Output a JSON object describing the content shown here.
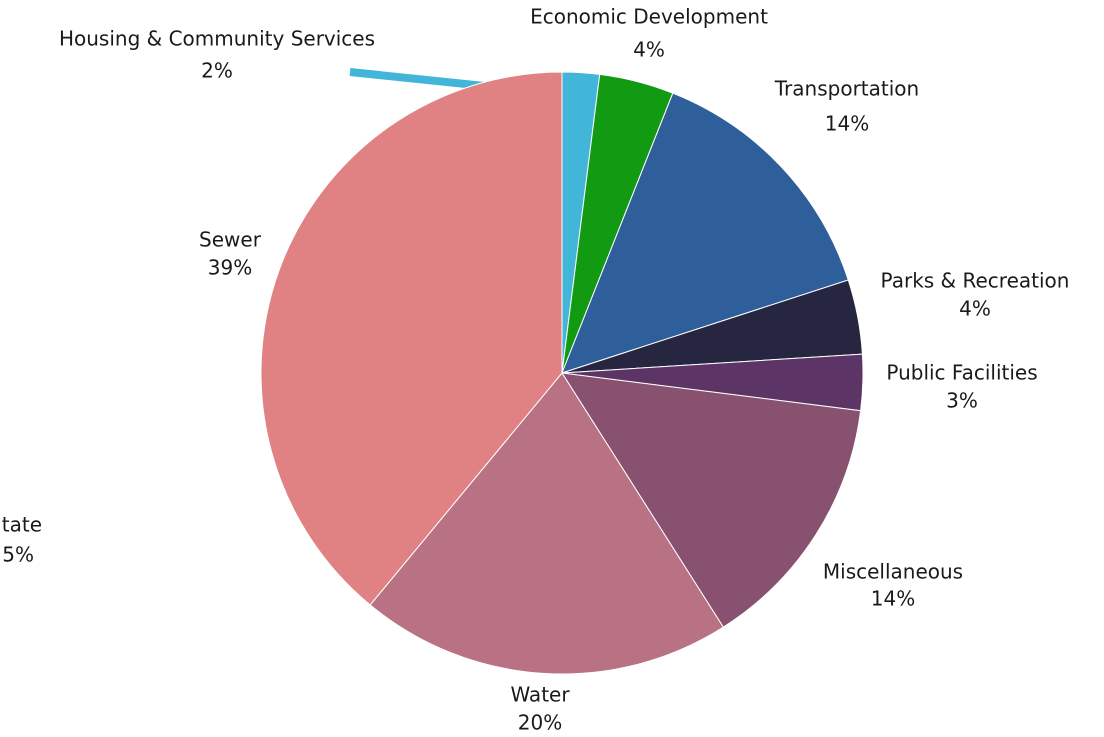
{
  "chart_data": {
    "type": "pie",
    "categories": [
      "Housing & Community Services",
      "Economic Development",
      "Transportation",
      "Parks & Recreation",
      "Public Facilities",
      "Miscellaneous",
      "Water",
      "Sewer"
    ],
    "values": [
      2,
      4,
      14,
      4,
      3,
      14,
      20,
      39
    ],
    "value_labels": [
      "2%",
      "4%",
      "14%",
      "4%",
      "3%",
      "14%",
      "20%",
      "39%"
    ],
    "colors": [
      "#41b6d9",
      "#129a12",
      "#2e5f9a",
      "#262641",
      "#5c3566",
      "#895170",
      "#b97184",
      "#e08283"
    ],
    "annotations": [
      "tate",
      "5%"
    ]
  }
}
